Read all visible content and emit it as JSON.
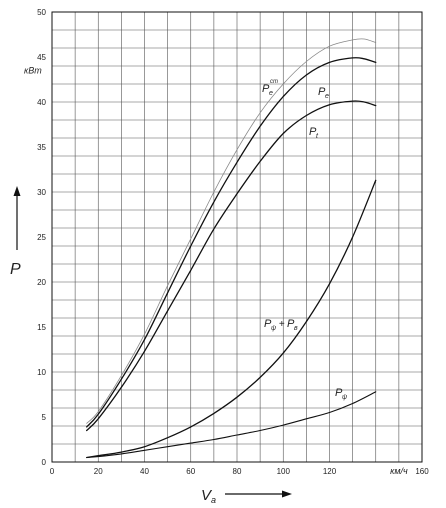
{
  "chart_data": {
    "type": "line",
    "xlabel": "V",
    "xlabel_sub": "a",
    "ylabel": "P",
    "x_unit": "км/ч",
    "y_unit": "кВт",
    "xlim": [
      0,
      160
    ],
    "ylim": [
      0,
      50
    ],
    "x_ticks": [
      "0",
      "20",
      "40",
      "60",
      "80",
      "100",
      "120",
      "160"
    ],
    "y_ticks": [
      "0",
      "5",
      "10",
      "15",
      "20",
      "25",
      "30",
      "35",
      "40",
      "45",
      "50"
    ],
    "grid": true,
    "series": [
      {
        "label_main": "P",
        "label_sub": "e",
        "label_sup": "cm",
        "color": "#888888",
        "width": 0.8,
        "x": [
          15,
          20,
          30,
          40,
          50,
          60,
          70,
          80,
          90,
          100,
          110,
          120,
          130,
          135,
          140
        ],
        "y": [
          4.3,
          5.6,
          9.6,
          14.2,
          19.6,
          24.8,
          30.0,
          34.7,
          38.8,
          42.0,
          44.5,
          46.2,
          46.9,
          47.0,
          46.6
        ]
      },
      {
        "label_main": "P",
        "label_sub": "e",
        "color": "#111111",
        "width": 1.3,
        "x": [
          15,
          20,
          30,
          40,
          50,
          60,
          70,
          80,
          90,
          100,
          110,
          120,
          130,
          135,
          140
        ],
        "y": [
          3.9,
          5.3,
          9.2,
          13.6,
          18.8,
          24.0,
          28.9,
          33.3,
          37.3,
          40.6,
          43.0,
          44.4,
          44.9,
          44.8,
          44.4
        ]
      },
      {
        "label_main": "P",
        "label_sub": "t",
        "color": "#111111",
        "width": 1.3,
        "x": [
          15,
          20,
          30,
          40,
          50,
          60,
          70,
          80,
          90,
          100,
          110,
          120,
          130,
          135,
          140
        ],
        "y": [
          3.5,
          4.8,
          8.3,
          12.3,
          16.8,
          21.3,
          25.9,
          29.8,
          33.4,
          36.5,
          38.5,
          39.7,
          40.1,
          40.0,
          39.6
        ]
      },
      {
        "label_main": "P",
        "label_sub": "ψ",
        "label_plus": " + ",
        "label_main2": "P",
        "label_sub2": "в",
        "color": "#111111",
        "width": 1.3,
        "x": [
          15,
          20,
          30,
          40,
          50,
          60,
          70,
          80,
          90,
          100,
          110,
          120,
          130,
          140
        ],
        "y": [
          0.5,
          0.7,
          1.1,
          1.7,
          2.7,
          3.9,
          5.4,
          7.2,
          9.4,
          12.1,
          15.6,
          19.8,
          25.0,
          31.3
        ]
      },
      {
        "label_main": "P",
        "label_sub": "ψ",
        "color": "#111111",
        "width": 1.1,
        "x": [
          15,
          20,
          30,
          40,
          50,
          60,
          70,
          80,
          90,
          100,
          110,
          120,
          130,
          140
        ],
        "y": [
          0.5,
          0.6,
          0.9,
          1.3,
          1.7,
          2.1,
          2.5,
          3.0,
          3.5,
          4.1,
          4.8,
          5.5,
          6.5,
          7.8
        ]
      }
    ]
  }
}
